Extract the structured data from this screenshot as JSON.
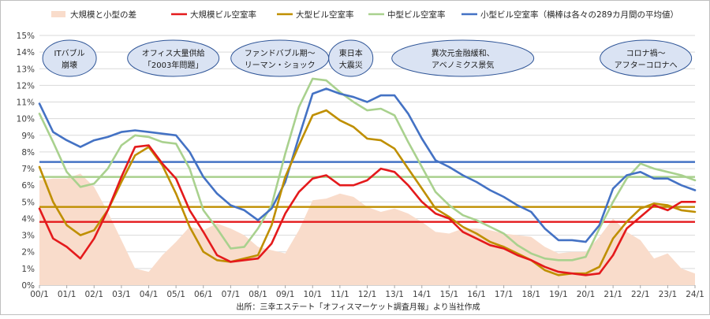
{
  "chart_data": {
    "type": "line",
    "title": "",
    "xlabel": "",
    "ylabel": "",
    "ylim": [
      0,
      15
    ],
    "y_ticks": [
      "0%",
      "1%",
      "2%",
      "3%",
      "4%",
      "5%",
      "6%",
      "7%",
      "8%",
      "9%",
      "10%",
      "11%",
      "12%",
      "13%",
      "14%",
      "15%"
    ],
    "x_ticks": [
      "00/1",
      "01/1",
      "02/1",
      "03/1",
      "04/1",
      "05/1",
      "06/1",
      "07/1",
      "08/1",
      "09/1",
      "10/1",
      "11/1",
      "12/1",
      "13/1",
      "14/1",
      "15/1",
      "16/1",
      "17/1",
      "18/1",
      "19/1",
      "20/1",
      "21/1",
      "22/1",
      "23/1",
      "24/1"
    ],
    "grid": true,
    "legend_position": "top",
    "legend": [
      {
        "key": "diff",
        "label": "大規模と小型の差",
        "kind": "area",
        "color": "#f9dccb"
      },
      {
        "key": "large_scale",
        "label": "大規模ビル空室率",
        "kind": "line",
        "color": "#e41a1c"
      },
      {
        "key": "large",
        "label": "大型ビル空室率",
        "kind": "line",
        "color": "#bf8f00"
      },
      {
        "key": "medium",
        "label": "中型ビル空室率",
        "kind": "line",
        "color": "#a9d18e"
      },
      {
        "key": "small",
        "label": "小型ビル空室率（横棒は各々の289カ月間の平均値）",
        "kind": "line",
        "color": "#4472c4"
      }
    ],
    "x": [
      2000.0,
      2000.5,
      2001.0,
      2001.5,
      2002.0,
      2002.5,
      2003.0,
      2003.5,
      2004.0,
      2004.5,
      2005.0,
      2005.5,
      2006.0,
      2006.5,
      2007.0,
      2007.5,
      2008.0,
      2008.5,
      2009.0,
      2009.5,
      2010.0,
      2010.5,
      2011.0,
      2011.5,
      2012.0,
      2012.5,
      2013.0,
      2013.5,
      2014.0,
      2014.5,
      2015.0,
      2015.5,
      2016.0,
      2016.5,
      2017.0,
      2017.5,
      2018.0,
      2018.5,
      2019.0,
      2019.5,
      2020.0,
      2020.5,
      2021.0,
      2021.5,
      2022.0,
      2022.5,
      2023.0,
      2023.5,
      2024.0
    ],
    "series": [
      {
        "key": "large_scale",
        "values": [
          4.6,
          2.8,
          2.3,
          1.6,
          2.8,
          4.5,
          6.5,
          8.3,
          8.4,
          7.3,
          6.4,
          4.5,
          3.2,
          1.8,
          1.4,
          1.5,
          1.6,
          2.5,
          4.3,
          5.6,
          6.4,
          6.6,
          6.0,
          6.0,
          6.3,
          7.0,
          6.8,
          6.0,
          5.0,
          4.3,
          4.0,
          3.2,
          2.8,
          2.4,
          2.2,
          1.8,
          1.5,
          1.1,
          0.8,
          0.7,
          0.6,
          0.7,
          1.8,
          3.4,
          4.1,
          4.8,
          4.5,
          5.0,
          5.0
        ]
      },
      {
        "key": "large",
        "values": [
          7.1,
          5.0,
          3.6,
          3.0,
          3.3,
          4.5,
          6.2,
          7.8,
          8.3,
          7.2,
          5.5,
          3.5,
          2.0,
          1.5,
          1.4,
          1.6,
          1.8,
          3.6,
          6.5,
          8.4,
          10.2,
          10.5,
          9.9,
          9.5,
          8.8,
          8.7,
          8.2,
          7.0,
          5.8,
          4.6,
          4.1,
          3.5,
          3.1,
          2.6,
          2.3,
          1.9,
          1.5,
          0.9,
          0.6,
          0.7,
          0.7,
          1.1,
          2.8,
          3.8,
          4.6,
          4.9,
          4.8,
          4.5,
          4.4
        ]
      },
      {
        "key": "medium",
        "values": [
          10.3,
          8.6,
          6.8,
          5.9,
          6.1,
          7.0,
          8.4,
          9.0,
          8.9,
          8.6,
          8.5,
          7.0,
          4.5,
          3.4,
          2.2,
          2.3,
          3.4,
          4.8,
          7.9,
          10.7,
          12.4,
          12.3,
          11.6,
          11.0,
          10.5,
          10.6,
          10.2,
          8.6,
          7.1,
          5.6,
          4.8,
          4.2,
          3.9,
          3.5,
          3.1,
          2.4,
          1.9,
          1.6,
          1.5,
          1.5,
          1.7,
          3.4,
          5.0,
          6.4,
          7.3,
          7.0,
          6.8,
          6.6,
          6.3
        ]
      },
      {
        "key": "small",
        "values": [
          10.9,
          9.2,
          8.7,
          8.3,
          8.7,
          8.9,
          9.2,
          9.3,
          9.2,
          9.1,
          9.0,
          8.0,
          6.5,
          5.5,
          4.8,
          4.5,
          3.9,
          4.6,
          6.2,
          8.9,
          11.5,
          11.8,
          11.5,
          11.3,
          11.0,
          11.4,
          11.4,
          10.3,
          8.8,
          7.5,
          7.1,
          6.6,
          6.2,
          5.7,
          5.3,
          4.8,
          4.4,
          3.4,
          2.7,
          2.7,
          2.6,
          3.6,
          5.8,
          6.6,
          6.8,
          6.4,
          6.4,
          6.0,
          5.7
        ]
      },
      {
        "key": "diff",
        "values": [
          6.3,
          6.4,
          6.4,
          6.7,
          5.9,
          4.4,
          2.7,
          1.0,
          0.8,
          1.8,
          2.6,
          3.5,
          3.3,
          3.7,
          3.4,
          3.0,
          2.3,
          2.1,
          1.9,
          3.3,
          5.1,
          5.2,
          5.5,
          5.3,
          4.7,
          4.4,
          4.6,
          4.3,
          3.8,
          3.2,
          3.1,
          3.4,
          3.4,
          3.3,
          3.1,
          3.0,
          2.9,
          2.3,
          1.9,
          2.0,
          2.0,
          2.9,
          4.0,
          3.2,
          2.7,
          1.6,
          1.9,
          1.0,
          0.7
        ]
      }
    ],
    "averages": [
      {
        "key": "small",
        "value": 7.4
      },
      {
        "key": "medium",
        "value": 6.5
      },
      {
        "key": "large",
        "value": 4.7
      },
      {
        "key": "large_scale",
        "value": 3.8
      }
    ],
    "annotations": [
      {
        "lines": [
          "ITバブル",
          "崩壊"
        ],
        "x": 2001.1
      },
      {
        "lines": [
          "オフィス大量供給",
          "「2003年問題」"
        ],
        "x": 2004.9
      },
      {
        "lines": [
          "ファンドバブル期～",
          "リーマン・ショック"
        ],
        "x": 2008.8
      },
      {
        "lines": [
          "東日本",
          "大震災"
        ],
        "x": 2011.4
      },
      {
        "lines": [
          "異次元金融緩和、",
          "アベノミクス景気"
        ],
        "x": 2015.5
      },
      {
        "lines": [
          "コロナ禍～",
          "アフターコロナへ"
        ],
        "x": 2022.2
      }
    ],
    "source": "出所：三幸エステート「オフィスマーケット調査月報」より当社作成"
  }
}
